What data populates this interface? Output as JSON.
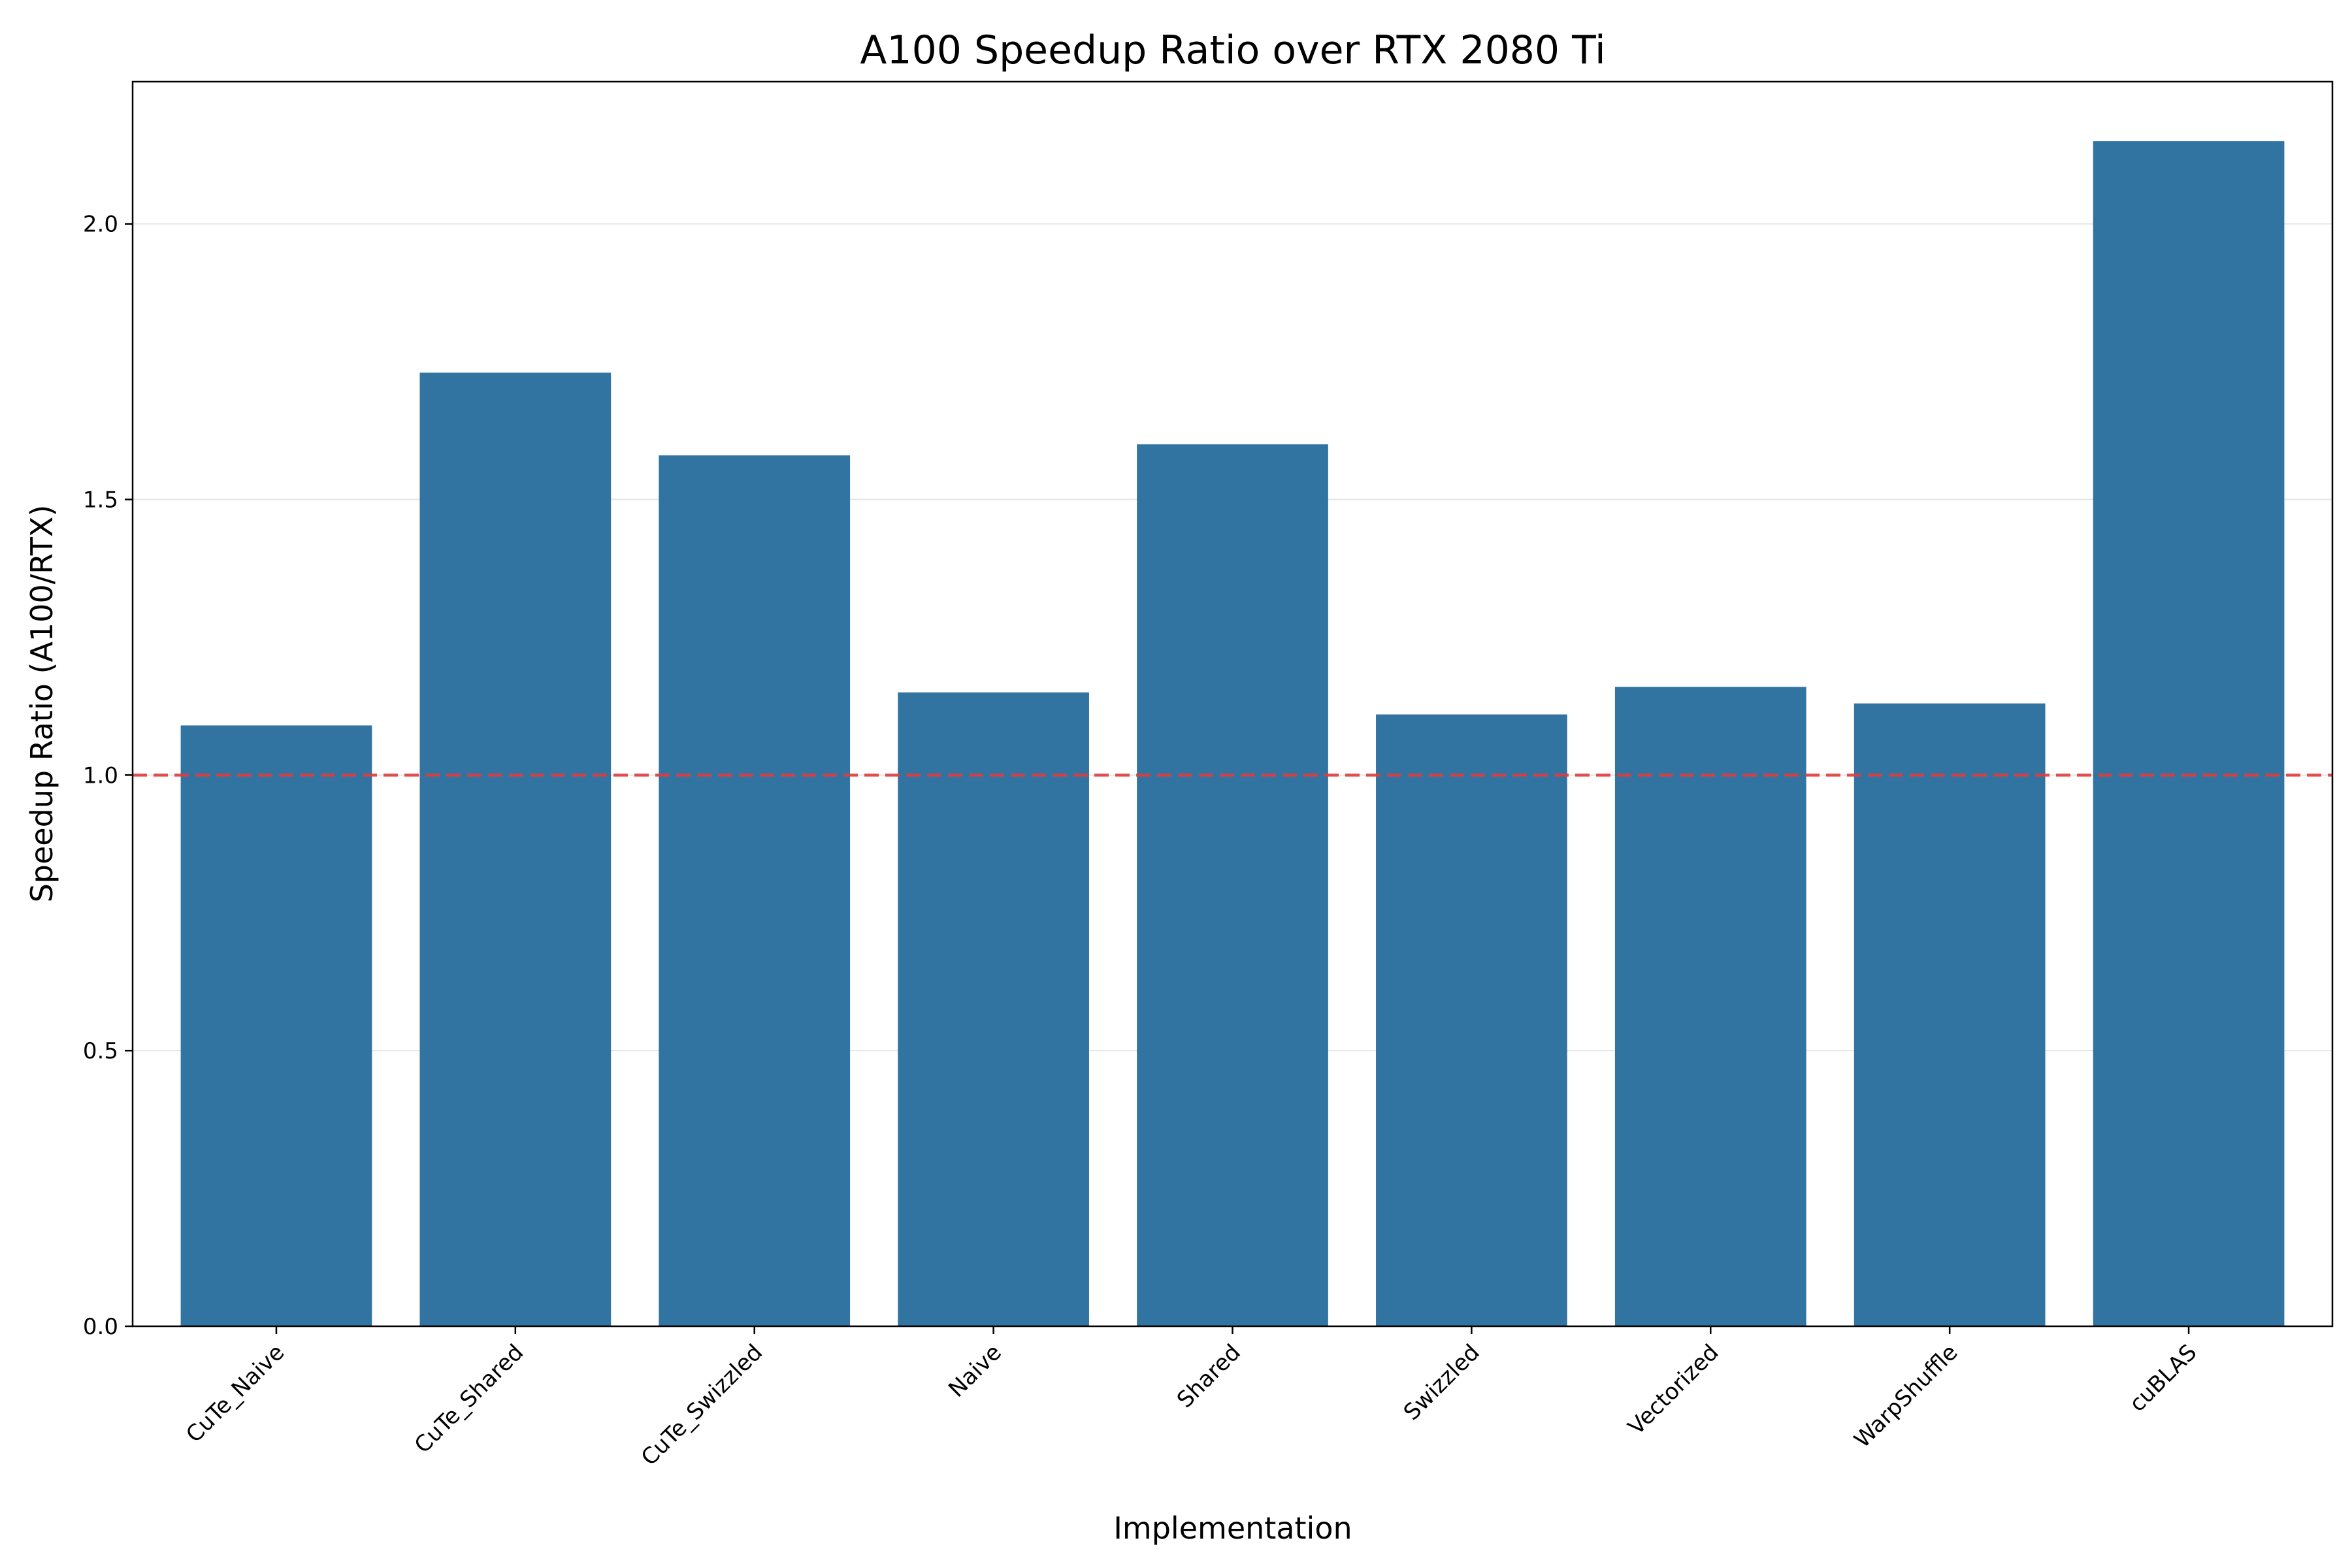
{
  "chart_data": {
    "type": "bar",
    "title": "A100 Speedup Ratio over RTX 2080 Ti",
    "xlabel": "Implementation",
    "ylabel": "Speedup Ratio (A100/RTX)",
    "categories": [
      "CuTe_Naive",
      "CuTe_Shared",
      "CuTe_Swizzled",
      "Naive",
      "Shared",
      "Swizzled",
      "Vectorized",
      "WarpShuffle",
      "cuBLAS"
    ],
    "values": [
      1.09,
      1.73,
      1.58,
      1.15,
      1.6,
      1.11,
      1.16,
      1.13,
      2.15
    ],
    "ylim": [
      0,
      2.258
    ],
    "yticks": [
      "0.0",
      "0.5",
      "1.0",
      "1.5",
      "2.0"
    ],
    "reference_line": {
      "y": 1.0,
      "color": "#e03c3c",
      "style": "dashed"
    },
    "grid": "horizontal",
    "bar_color": "#3274a1"
  }
}
